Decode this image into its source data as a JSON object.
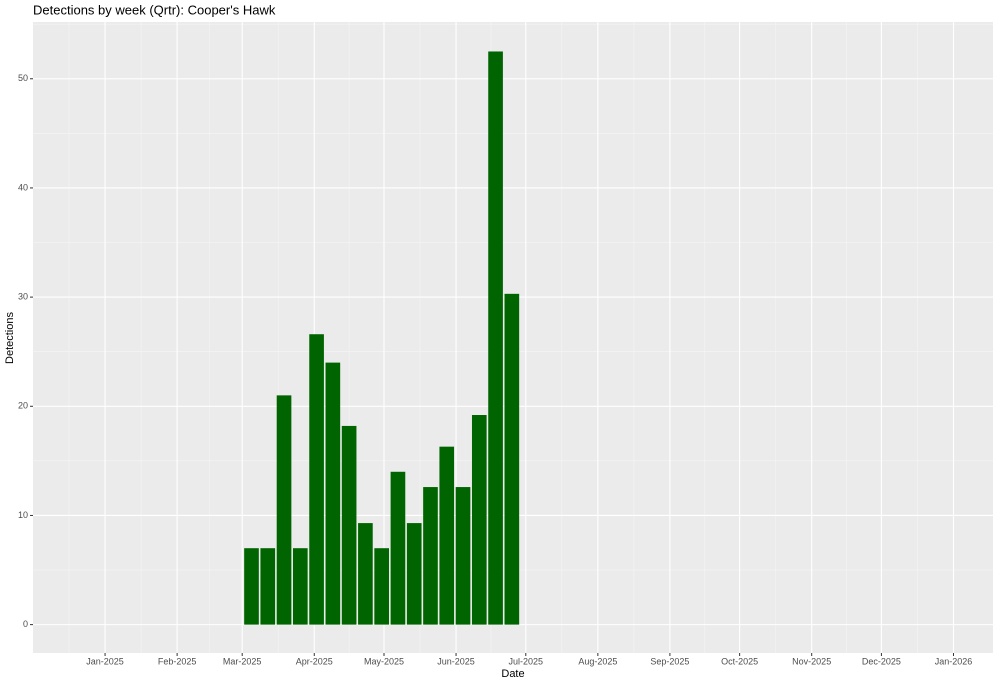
{
  "chart_data": {
    "type": "bar",
    "title": "Detections by week (Qrtr): Cooper's Hawk",
    "x_label": "Date",
    "y_label": "Detections",
    "x": [
      "2025-03-05",
      "2025-03-12",
      "2025-03-19",
      "2025-03-26",
      "2025-04-02",
      "2025-04-09",
      "2025-04-16",
      "2025-04-23",
      "2025-04-30",
      "2025-05-07",
      "2025-05-14",
      "2025-05-21",
      "2025-05-28",
      "2025-06-04",
      "2025-06-11",
      "2025-06-18",
      "2025-06-25"
    ],
    "values": [
      7,
      7,
      21,
      7,
      26.6,
      24,
      18.2,
      9.3,
      7,
      14,
      9.3,
      12.6,
      16.3,
      12.6,
      19.2,
      52.5,
      30.3
    ],
    "color": "#006400",
    "xlim": [
      "2024-12-01",
      "2026-01-18"
    ],
    "xticks": [
      {
        "value": "2025-01-01",
        "label": "Jan-2025"
      },
      {
        "value": "2025-02-01",
        "label": "Feb-2025"
      },
      {
        "value": "2025-03-01",
        "label": "Mar-2025"
      },
      {
        "value": "2025-04-01",
        "label": "Apr-2025"
      },
      {
        "value": "2025-05-01",
        "label": "May-2025"
      },
      {
        "value": "2025-06-01",
        "label": "Jun-2025"
      },
      {
        "value": "2025-07-01",
        "label": "Jul-2025"
      },
      {
        "value": "2025-08-01",
        "label": "Aug-2025"
      },
      {
        "value": "2025-09-01",
        "label": "Sep-2025"
      },
      {
        "value": "2025-10-01",
        "label": "Oct-2025"
      },
      {
        "value": "2025-11-01",
        "label": "Nov-2025"
      },
      {
        "value": "2025-12-01",
        "label": "Dec-2025"
      },
      {
        "value": "2026-01-01",
        "label": "Jan-2026"
      }
    ],
    "ylim": [
      -2.6,
      55.2
    ],
    "yticks": [
      0,
      10,
      20,
      30,
      40,
      50
    ],
    "grid": true
  }
}
